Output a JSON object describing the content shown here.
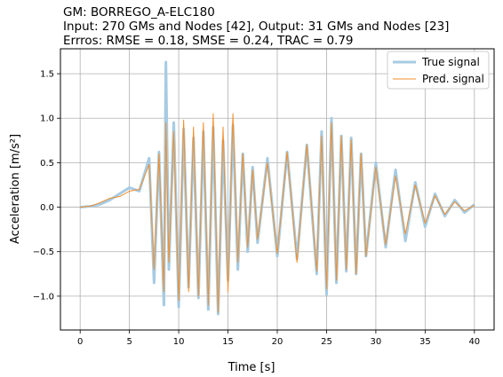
{
  "chart_data": {
    "type": "line",
    "title_lines": [
      "GM: BORREGO_A-ELC180",
      "Input: 270 GMs and Nodes [42], Output: 31 GMs and Nodes [23]",
      "Errros: RMSE = 0.18, SMSE = 0.24, TRAC = 0.79"
    ],
    "xlabel": "Time [s]",
    "ylabel": "Acceleration [m/s²]",
    "xlim": [
      -2,
      42
    ],
    "ylim": [
      -1.38,
      1.78
    ],
    "xticks": [
      0,
      5,
      10,
      15,
      20,
      25,
      30,
      35,
      40
    ],
    "xtick_labels": [
      "0",
      "5",
      "10",
      "15",
      "20",
      "25",
      "30",
      "35",
      "40"
    ],
    "yticks": [
      -1.0,
      -0.5,
      0.0,
      0.5,
      1.0,
      1.5
    ],
    "ytick_labels": [
      "−1.0",
      "−0.5",
      "0.0",
      "0.5",
      "1.0",
      "1.5"
    ],
    "grid": true,
    "legend_position": "top-right",
    "series": [
      {
        "name": "True signal",
        "color": "#a6cbe3",
        "x": [
          0,
          1,
          2,
          3,
          4,
          5,
          6,
          7,
          7.5,
          8,
          8.5,
          8.7,
          9,
          9.5,
          10,
          10.5,
          11,
          11.5,
          12,
          12.5,
          13,
          13.5,
          14,
          14.5,
          15,
          15.5,
          16,
          16.5,
          17,
          17.5,
          18,
          19,
          20,
          21,
          22,
          23,
          24,
          24.5,
          25,
          25.5,
          26,
          26.5,
          27,
          27.5,
          28,
          28.5,
          29,
          30,
          31,
          32,
          33,
          34,
          35,
          36,
          37,
          38,
          39,
          40
        ],
        "y": [
          0,
          0.01,
          0.03,
          0.08,
          0.15,
          0.22,
          0.18,
          0.55,
          -0.85,
          0.62,
          -1.1,
          1.63,
          -0.7,
          0.95,
          -1.12,
          0.88,
          -0.9,
          0.78,
          -1.02,
          0.85,
          -1.15,
          0.9,
          -1.2,
          0.75,
          -0.82,
          0.92,
          -0.7,
          0.6,
          -0.5,
          0.45,
          -0.4,
          0.55,
          -0.55,
          0.62,
          -0.58,
          0.7,
          -0.75,
          0.85,
          -0.98,
          1.0,
          -0.85,
          0.8,
          -0.72,
          0.78,
          -0.75,
          0.6,
          -0.55,
          0.5,
          -0.45,
          0.42,
          -0.38,
          0.28,
          -0.22,
          0.15,
          -0.1,
          0.08,
          -0.06,
          0.03
        ]
      },
      {
        "name": "Pred. signal",
        "color": "#f28e2b",
        "x": [
          0,
          1,
          2,
          3,
          4,
          5,
          6,
          7,
          7.5,
          8,
          8.5,
          8.7,
          9,
          9.5,
          10,
          10.5,
          11,
          11.5,
          12,
          12.5,
          13,
          13.5,
          14,
          14.5,
          15,
          15.5,
          16,
          16.5,
          17,
          17.5,
          18,
          19,
          20,
          21,
          22,
          23,
          24,
          24.5,
          25,
          25.5,
          26,
          26.5,
          27,
          27.5,
          28,
          28.5,
          29,
          30,
          31,
          32,
          33,
          34,
          35,
          36,
          37,
          38,
          39,
          40
        ],
        "y": [
          0,
          0.01,
          0.05,
          0.1,
          0.12,
          0.18,
          0.2,
          0.48,
          -0.7,
          0.6,
          -0.95,
          0.95,
          -0.62,
          0.85,
          -1.05,
          0.98,
          -0.95,
          0.9,
          -1.0,
          0.95,
          -1.1,
          1.05,
          -1.18,
          0.9,
          -0.95,
          1.05,
          -0.62,
          0.6,
          -0.45,
          0.42,
          -0.36,
          0.5,
          -0.52,
          0.62,
          -0.62,
          0.7,
          -0.72,
          0.8,
          -0.92,
          0.95,
          -0.82,
          0.8,
          -0.7,
          0.76,
          -0.75,
          0.6,
          -0.55,
          0.45,
          -0.42,
          0.35,
          -0.3,
          0.25,
          -0.18,
          0.13,
          -0.08,
          0.06,
          -0.04,
          0.02
        ]
      }
    ]
  }
}
